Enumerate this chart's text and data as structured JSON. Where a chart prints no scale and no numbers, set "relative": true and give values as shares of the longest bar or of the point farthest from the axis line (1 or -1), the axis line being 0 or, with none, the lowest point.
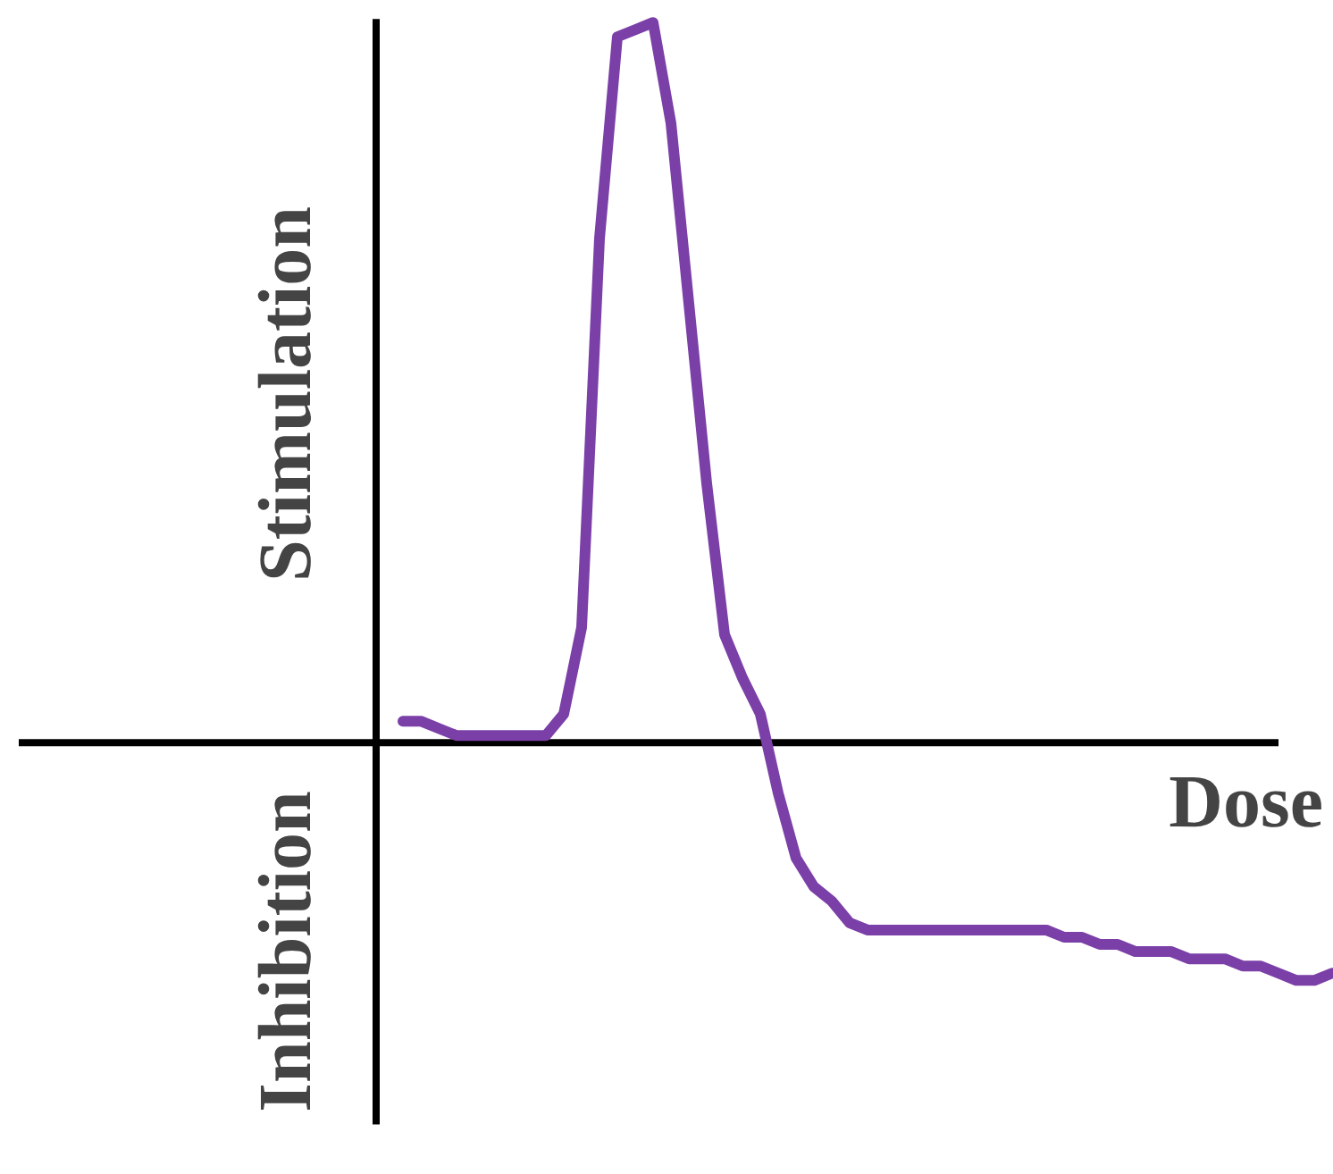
{
  "chart_data": {
    "type": "line",
    "relative": true,
    "xlabel": "Dose",
    "annotations": [
      "Stimulation",
      "Inhibition"
    ],
    "categories": [
      null,
      null,
      null,
      null,
      null,
      null,
      null,
      null,
      null,
      null,
      null,
      null,
      null,
      null,
      null,
      null,
      null,
      null,
      null,
      null,
      null,
      null,
      null,
      null,
      null,
      null,
      null,
      null,
      null,
      null,
      null,
      null,
      null,
      null,
      null,
      null,
      null,
      null,
      null,
      null,
      null,
      null,
      null,
      null,
      null,
      null,
      null,
      null,
      null,
      null,
      null,
      null,
      null
    ],
    "series": [
      {
        "color": "#7b3fa8",
        "values": [
          0.03,
          0.03,
          0.02,
          0.01,
          0.01,
          0.01,
          0.01,
          0.01,
          0.01,
          0.04,
          0.16,
          0.7,
          0.98,
          0.99,
          1.0,
          0.86,
          0.61,
          0.36,
          0.15,
          0.09,
          0.04,
          -0.07,
          -0.16,
          -0.2,
          -0.22,
          -0.25,
          -0.26,
          -0.26,
          -0.26,
          -0.26,
          -0.26,
          -0.26,
          -0.26,
          -0.26,
          -0.26,
          -0.26,
          -0.26,
          -0.27,
          -0.27,
          -0.28,
          -0.28,
          -0.29,
          -0.29,
          -0.29,
          -0.3,
          -0.3,
          -0.3,
          -0.31,
          -0.31,
          -0.32,
          -0.33,
          -0.33,
          -0.32
        ]
      }
    ]
  }
}
